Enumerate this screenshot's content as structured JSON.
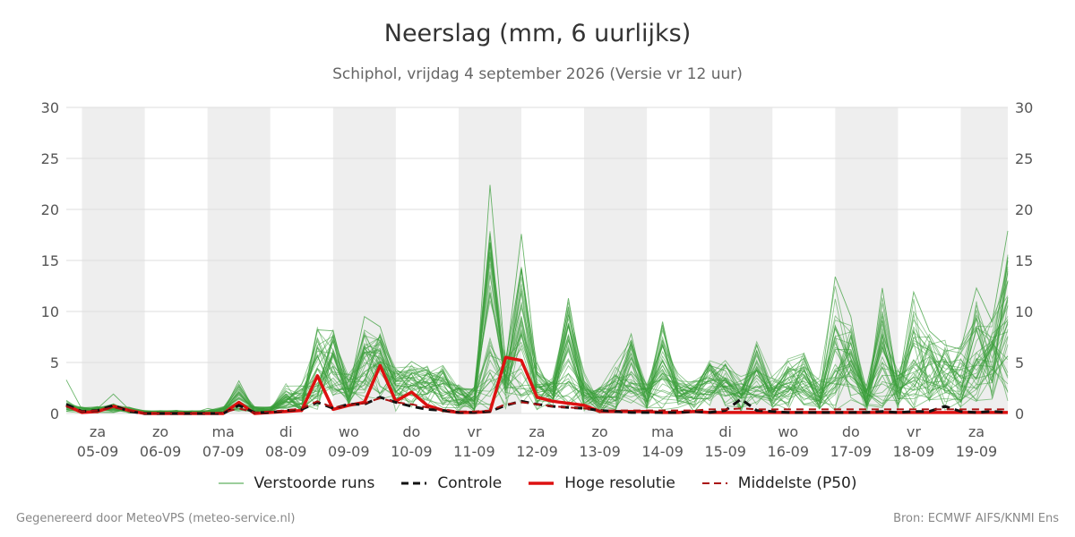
{
  "title": "Neerslag (mm, 6 uurlijks)",
  "subtitle": "Schiphol, vrijdag  4 september 2026 (Versie vr 12 uur)",
  "footer": {
    "left": "Gegenereerd door MeteoVPS (meteo-service.nl)",
    "right": "Bron: ECMWF AIFS/KNMI Ens"
  },
  "colors": {
    "ensemble": "#3a9e3a",
    "controle": "#111111",
    "hoge_resolutie": "#dd1111",
    "p50": "#aa1111",
    "weekend_band": "#eeeeee",
    "grid": "#dddddd"
  },
  "legend": [
    {
      "key": "ensemble",
      "label": "Verstoorde runs",
      "style": "thin"
    },
    {
      "key": "controle",
      "label": "Controle",
      "style": "dashed"
    },
    {
      "key": "hoge_resolutie",
      "label": "Hoge resolutie",
      "style": "thick"
    },
    {
      "key": "p50",
      "label": "Middelste (P50)",
      "style": "dashed-thin"
    }
  ],
  "chart_data": {
    "type": "line",
    "ylim": [
      0,
      30
    ],
    "yticks": [
      0,
      5,
      10,
      15,
      20,
      25,
      30
    ],
    "y_axis_both_sides": true,
    "grid": true,
    "legend_placement": "bottom",
    "x_start": "2026-09-04 12:00",
    "x_end": "2026-09-19 12:00",
    "x_step_hours": 6,
    "day_ticks": [
      {
        "date": "2026-09-05 00:00",
        "day": "za",
        "label": "05-09"
      },
      {
        "date": "2026-09-06 00:00",
        "day": "zo",
        "label": "06-09"
      },
      {
        "date": "2026-09-07 00:00",
        "day": "ma",
        "label": "07-09"
      },
      {
        "date": "2026-09-08 00:00",
        "day": "di",
        "label": "08-09"
      },
      {
        "date": "2026-09-09 00:00",
        "day": "wo",
        "label": "09-09"
      },
      {
        "date": "2026-09-10 00:00",
        "day": "do",
        "label": "10-09"
      },
      {
        "date": "2026-09-11 00:00",
        "day": "vr",
        "label": "11-09"
      },
      {
        "date": "2026-09-12 00:00",
        "day": "za",
        "label": "12-09"
      },
      {
        "date": "2026-09-13 00:00",
        "day": "zo",
        "label": "13-09"
      },
      {
        "date": "2026-09-14 00:00",
        "day": "ma",
        "label": "14-09"
      },
      {
        "date": "2026-09-15 00:00",
        "day": "di",
        "label": "15-09"
      },
      {
        "date": "2026-09-16 00:00",
        "day": "wo",
        "label": "16-09"
      },
      {
        "date": "2026-09-17 00:00",
        "day": "do",
        "label": "17-09"
      },
      {
        "date": "2026-09-18 00:00",
        "day": "vr",
        "label": "18-09"
      },
      {
        "date": "2026-09-19 00:00",
        "day": "za",
        "label": "19-09"
      }
    ],
    "shaded_bands": [
      [
        "2026-09-04 18:00",
        "2026-09-05 18:00"
      ],
      [
        "2026-09-06 18:00",
        "2026-09-07 18:00"
      ],
      [
        "2026-09-08 18:00",
        "2026-09-09 18:00"
      ],
      [
        "2026-09-10 18:00",
        "2026-09-11 18:00"
      ],
      [
        "2026-09-12 18:00",
        "2026-09-13 18:00"
      ],
      [
        "2026-09-14 18:00",
        "2026-09-15 18:00"
      ],
      [
        "2026-09-16 18:00",
        "2026-09-17 18:00"
      ],
      [
        "2026-09-18 18:00",
        "2026-09-19 12:00"
      ]
    ],
    "series": [
      {
        "name": "Hoge resolutie",
        "key": "hoge_resolutie",
        "values": [
          0.8,
          0.1,
          0.2,
          0.7,
          0.3,
          0,
          0,
          0,
          0,
          0,
          0,
          1.1,
          0,
          0.1,
          0.2,
          0.3,
          3.7,
          0.4,
          0.8,
          1.1,
          4.7,
          1.2,
          2.1,
          0.8,
          0.3,
          0.1,
          0.1,
          0.2,
          5.5,
          5.2,
          1.6,
          1.2,
          1,
          0.8,
          0.2,
          0.2,
          0.2,
          0.2,
          0.1,
          0.1,
          0.2,
          0.1,
          0.1,
          0.1,
          0.1,
          0.1,
          0.1,
          0.1,
          0.1,
          0.1,
          0.1,
          0.1,
          0.1,
          0.1,
          0.1,
          0.1,
          0.1,
          0.1,
          0.1,
          0.1,
          0.1
        ]
      },
      {
        "name": "Controle",
        "key": "controle",
        "values": [
          0.9,
          0.2,
          0.3,
          0.8,
          0.2,
          0,
          0,
          0,
          0,
          0,
          0,
          0.8,
          0.1,
          0.1,
          0.3,
          0.4,
          1.1,
          0.5,
          0.9,
          0.9,
          1.6,
          1.1,
          0.7,
          0.4,
          0.3,
          0.1,
          0.1,
          0.2,
          0.8,
          1.2,
          0.9,
          0.7,
          0.6,
          0.5,
          0.3,
          0.2,
          0.1,
          0.1,
          0.1,
          0.1,
          0.2,
          0.1,
          0.3,
          1.4,
          0.3,
          0.2,
          0.1,
          0.1,
          0.1,
          0.1,
          0.1,
          0.1,
          0.2,
          0.1,
          0.2,
          0.2,
          0.7,
          0.2,
          0.1,
          0.2,
          0.1
        ]
      },
      {
        "name": "Middelste (P50)",
        "key": "p50",
        "values": [
          0.7,
          0.2,
          0.3,
          0.6,
          0.3,
          0,
          0,
          0,
          0,
          0,
          0.1,
          0.5,
          0.1,
          0.2,
          0.3,
          0.5,
          1.2,
          0.6,
          0.8,
          1,
          1.5,
          1.1,
          0.9,
          0.6,
          0.4,
          0.2,
          0.2,
          0.3,
          0.9,
          1.1,
          0.9,
          0.7,
          0.6,
          0.5,
          0.3,
          0.3,
          0.3,
          0.3,
          0.3,
          0.3,
          0.3,
          0.4,
          0.4,
          0.5,
          0.4,
          0.4,
          0.4,
          0.4,
          0.4,
          0.4,
          0.4,
          0.4,
          0.4,
          0.4,
          0.4,
          0.4,
          0.4,
          0.4,
          0.4,
          0.4,
          0.4
        ]
      }
    ],
    "ensemble": {
      "name": "Verstoorde runs",
      "members": [
        [
          3.3,
          0.4,
          0.5,
          1.9,
          0.4,
          0,
          0,
          0,
          0,
          0.5,
          0.2,
          3.2,
          0.2,
          0.2,
          0.8,
          0.9,
          8.2,
          8.1,
          2.2,
          9.5,
          8.5,
          3.6,
          5.1,
          4.2,
          3.4,
          1.5,
          0.4,
          22.4,
          4.8,
          17.6,
          3.9,
          2.1,
          11.3,
          2.5,
          0.6,
          3.5,
          7.8,
          1.1,
          9,
          2.1,
          1.4,
          4.7,
          4.2,
          1.8,
          6.7,
          2.1,
          4.2,
          5.4,
          1.6,
          13.4,
          9.5,
          0.9,
          12.3,
          2.6,
          11.9,
          8.1,
          6.7,
          6.3,
          12.3,
          9,
          17.9
        ]
      ],
      "range_min": 0,
      "range_max": 22.4,
      "count_visible": "many (about 50)"
    }
  }
}
